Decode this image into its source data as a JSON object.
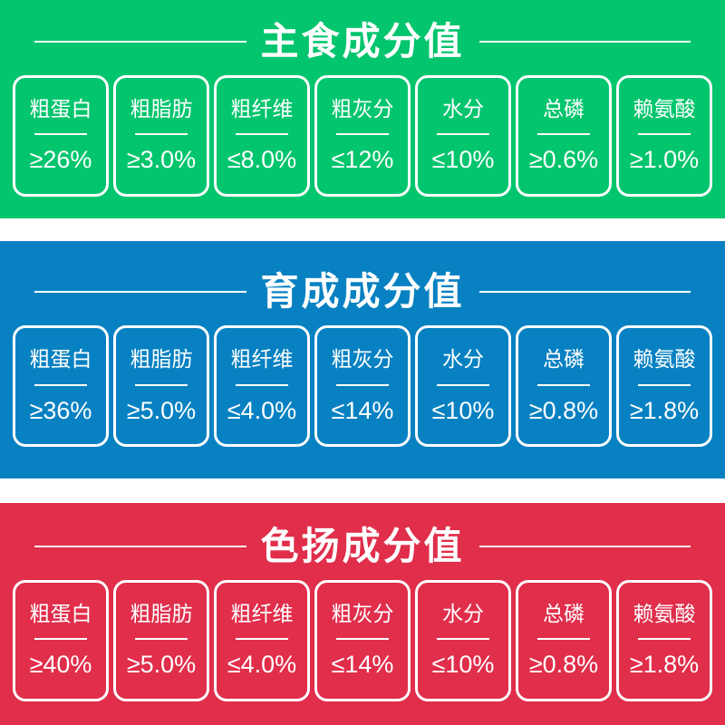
{
  "text_color": "#ffffff",
  "panels": [
    {
      "title": "主食成分值",
      "color": "#03c56d",
      "items": [
        {
          "label": "粗蛋白",
          "value": "≥26%"
        },
        {
          "label": "粗脂肪",
          "value": "≥3.0%"
        },
        {
          "label": "粗纤维",
          "value": "≤8.0%"
        },
        {
          "label": "粗灰分",
          "value": "≤12%"
        },
        {
          "label": "水分",
          "value": "≤10%"
        },
        {
          "label": "总磷",
          "value": "≥0.6%"
        },
        {
          "label": "赖氨酸",
          "value": "≥1.0%"
        }
      ]
    },
    {
      "title": "育成成分值",
      "color": "#0781c2",
      "items": [
        {
          "label": "粗蛋白",
          "value": "≥36%"
        },
        {
          "label": "粗脂肪",
          "value": "≥5.0%"
        },
        {
          "label": "粗纤维",
          "value": "≤4.0%"
        },
        {
          "label": "粗灰分",
          "value": "≤14%"
        },
        {
          "label": "水分",
          "value": "≤10%"
        },
        {
          "label": "总磷",
          "value": "≥0.8%"
        },
        {
          "label": "赖氨酸",
          "value": "≥1.8%"
        }
      ]
    },
    {
      "title": "色扬成分值",
      "color": "#e02e4b",
      "items": [
        {
          "label": "粗蛋白",
          "value": "≥40%"
        },
        {
          "label": "粗脂肪",
          "value": "≥5.0%"
        },
        {
          "label": "粗纤维",
          "value": "≤4.0%"
        },
        {
          "label": "粗灰分",
          "value": "≤14%"
        },
        {
          "label": "水分",
          "value": "≤10%"
        },
        {
          "label": "总磷",
          "value": "≥0.8%"
        },
        {
          "label": "赖氨酸",
          "value": "≥1.8%"
        }
      ]
    }
  ],
  "chart_data": [
    {
      "type": "table",
      "title": "主食成分值",
      "columns": [
        "粗蛋白",
        "粗脂肪",
        "粗纤维",
        "粗灰分",
        "水分",
        "总磷",
        "赖氨酸"
      ],
      "values": [
        "≥26%",
        "≥3.0%",
        "≤8.0%",
        "≤12%",
        "≤10%",
        "≥0.6%",
        "≥1.0%"
      ],
      "panel_color": "#03c56d"
    },
    {
      "type": "table",
      "title": "育成成分值",
      "columns": [
        "粗蛋白",
        "粗脂肪",
        "粗纤维",
        "粗灰分",
        "水分",
        "总磷",
        "赖氨酸"
      ],
      "values": [
        "≥36%",
        "≥5.0%",
        "≤4.0%",
        "≤14%",
        "≤10%",
        "≥0.8%",
        "≥1.8%"
      ],
      "panel_color": "#0781c2"
    },
    {
      "type": "table",
      "title": "色扬成分值",
      "columns": [
        "粗蛋白",
        "粗脂肪",
        "粗纤维",
        "粗灰分",
        "水分",
        "总磷",
        "赖氨酸"
      ],
      "values": [
        "≥40%",
        "≥5.0%",
        "≤4.0%",
        "≤14%",
        "≤10%",
        "≥0.8%",
        "≥1.8%"
      ],
      "panel_color": "#e02e4b"
    }
  ]
}
